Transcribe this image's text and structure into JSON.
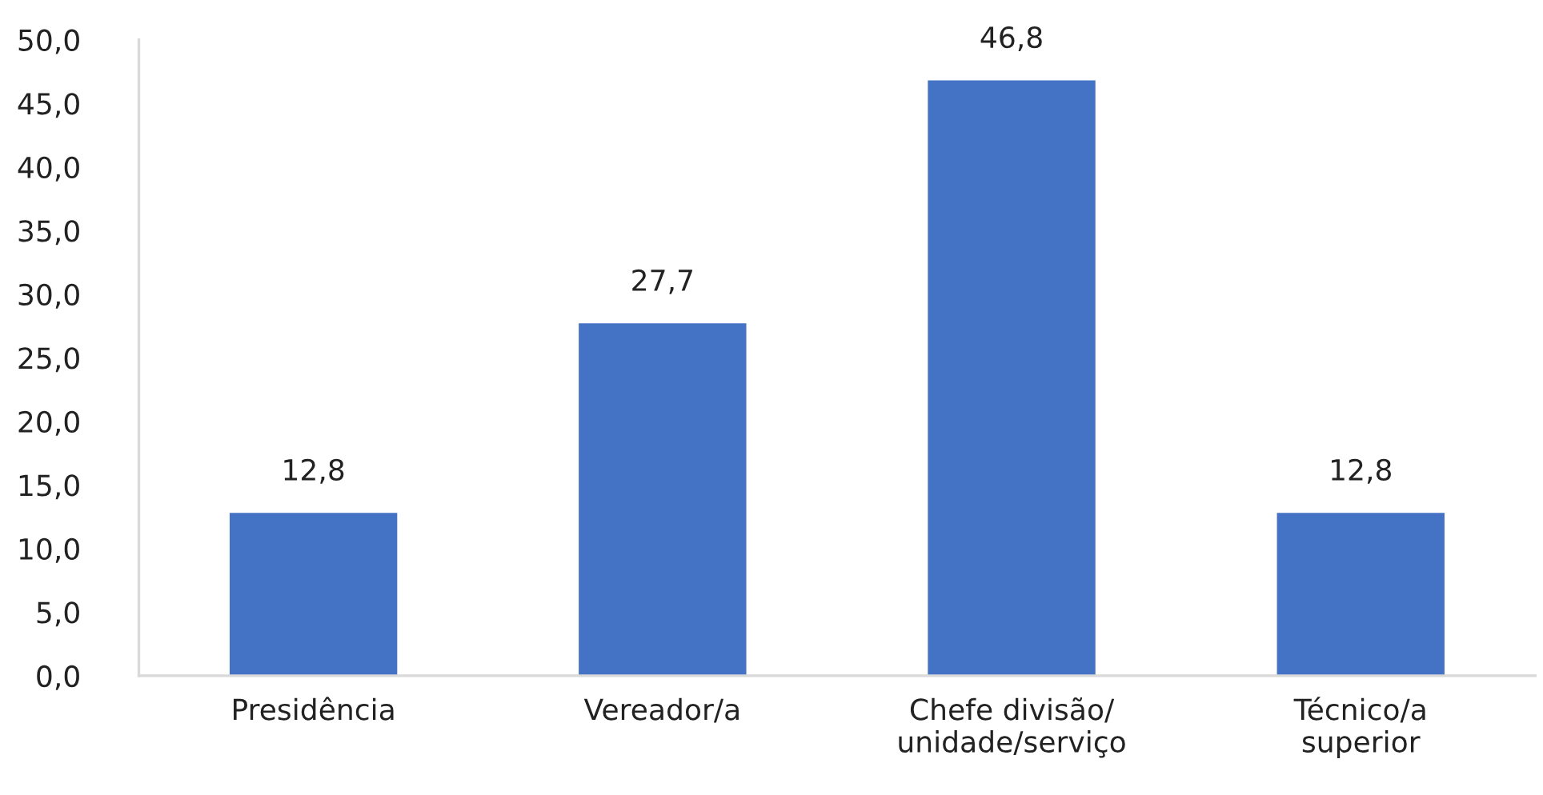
{
  "chart_data": {
    "type": "bar",
    "categories": [
      "Presidência",
      "Vereador/a",
      "Chefe divisão/\nunidade/serviço",
      "Técnico/a\nsuperior"
    ],
    "values": [
      12.8,
      27.7,
      46.8,
      12.8
    ],
    "color": "#4472c4",
    "value_labels": [
      "12,8",
      "27,7",
      "46,8",
      "12,8"
    ],
    "ylim": [
      0,
      50
    ],
    "yticks": [
      {
        "value": 0,
        "label": "0,0"
      },
      {
        "value": 5,
        "label": "5,0"
      },
      {
        "value": 10,
        "label": "10,0"
      },
      {
        "value": 15,
        "label": "15,0"
      },
      {
        "value": 20,
        "label": "20,0"
      },
      {
        "value": 25,
        "label": "25,0"
      },
      {
        "value": 30,
        "label": "30,0"
      },
      {
        "value": 35,
        "label": "35,0"
      },
      {
        "value": 40,
        "label": "40,0"
      },
      {
        "value": 45,
        "label": "45,0"
      },
      {
        "value": 50,
        "label": "50,0"
      }
    ],
    "grid": false,
    "legend": false
  }
}
